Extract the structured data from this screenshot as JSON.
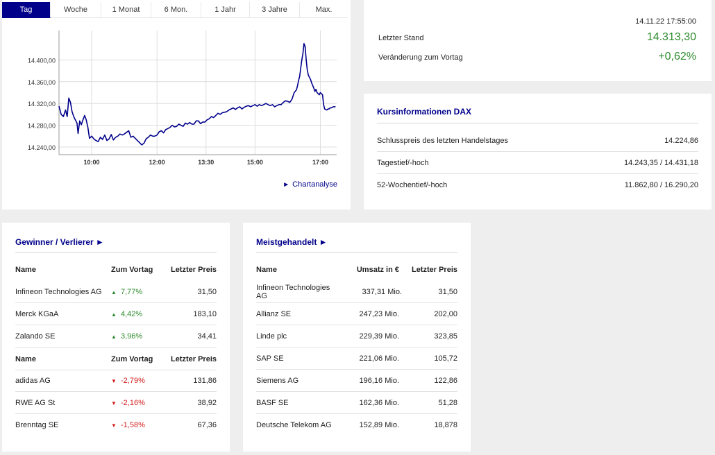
{
  "tabs": [
    {
      "label": "Tag",
      "active": true
    },
    {
      "label": "Woche",
      "active": false
    },
    {
      "label": "1 Monat",
      "active": false
    },
    {
      "label": "6 Mon.",
      "active": false
    },
    {
      "label": "1 Jahr",
      "active": false
    },
    {
      "label": "3 Jahre",
      "active": false
    },
    {
      "label": "Max.",
      "active": false
    }
  ],
  "chart_data": {
    "type": "line",
    "title": "",
    "xlabel": "",
    "ylabel": "",
    "y_ticks": [
      "14.400,00",
      "14.360,00",
      "14.320,00",
      "14.280,00",
      "14.240,00"
    ],
    "y_tick_values": [
      14400,
      14360,
      14320,
      14280,
      14240
    ],
    "x_ticks": [
      "10:00",
      "12:00",
      "13:30",
      "15:00",
      "17:00"
    ],
    "x_tick_minutes": [
      600,
      720,
      810,
      900,
      1020
    ],
    "xlim_minutes": [
      540,
      1050
    ],
    "ylim": [
      14226,
      14454
    ],
    "grid": true,
    "line_color": "#00008b",
    "series": [
      {
        "points": [
          [
            540,
            14315
          ],
          [
            544,
            14300
          ],
          [
            548,
            14296
          ],
          [
            552,
            14308
          ],
          [
            555,
            14296
          ],
          [
            558,
            14330
          ],
          [
            561,
            14322
          ],
          [
            564,
            14305
          ],
          [
            567,
            14296
          ],
          [
            570,
            14290
          ],
          [
            573,
            14284
          ],
          [
            575,
            14265
          ],
          [
            578,
            14288
          ],
          [
            581,
            14281
          ],
          [
            584,
            14290
          ],
          [
            587,
            14298
          ],
          [
            590,
            14290
          ],
          [
            593,
            14276
          ],
          [
            596,
            14256
          ],
          [
            600,
            14260
          ],
          [
            604,
            14255
          ],
          [
            608,
            14252
          ],
          [
            612,
            14250
          ],
          [
            616,
            14258
          ],
          [
            620,
            14254
          ],
          [
            624,
            14262
          ],
          [
            628,
            14252
          ],
          [
            632,
            14255
          ],
          [
            636,
            14263
          ],
          [
            640,
            14253
          ],
          [
            644,
            14258
          ],
          [
            648,
            14260
          ],
          [
            652,
            14264
          ],
          [
            656,
            14262
          ],
          [
            660,
            14264
          ],
          [
            664,
            14267
          ],
          [
            668,
            14270
          ],
          [
            672,
            14258
          ],
          [
            676,
            14260
          ],
          [
            680,
            14256
          ],
          [
            684,
            14252
          ],
          [
            688,
            14248
          ],
          [
            692,
            14244
          ],
          [
            696,
            14247
          ],
          [
            700,
            14255
          ],
          [
            704,
            14258
          ],
          [
            708,
            14262
          ],
          [
            712,
            14260
          ],
          [
            716,
            14260
          ],
          [
            720,
            14262
          ],
          [
            724,
            14268
          ],
          [
            728,
            14270
          ],
          [
            732,
            14266
          ],
          [
            736,
            14272
          ],
          [
            740,
            14274
          ],
          [
            744,
            14276
          ],
          [
            748,
            14280
          ],
          [
            752,
            14277
          ],
          [
            756,
            14278
          ],
          [
            760,
            14282
          ],
          [
            764,
            14280
          ],
          [
            768,
            14278
          ],
          [
            772,
            14284
          ],
          [
            776,
            14282
          ],
          [
            780,
            14285
          ],
          [
            784,
            14282
          ],
          [
            788,
            14282
          ],
          [
            792,
            14288
          ],
          [
            796,
            14288
          ],
          [
            800,
            14283
          ],
          [
            804,
            14286
          ],
          [
            808,
            14286
          ],
          [
            812,
            14290
          ],
          [
            816,
            14292
          ],
          [
            820,
            14296
          ],
          [
            824,
            14294
          ],
          [
            828,
            14298
          ],
          [
            832,
            14302
          ],
          [
            836,
            14300
          ],
          [
            840,
            14303
          ],
          [
            844,
            14304
          ],
          [
            848,
            14305
          ],
          [
            852,
            14308
          ],
          [
            856,
            14310
          ],
          [
            860,
            14312
          ],
          [
            864,
            14309
          ],
          [
            868,
            14312
          ],
          [
            872,
            14314
          ],
          [
            876,
            14310
          ],
          [
            880,
            14313
          ],
          [
            884,
            14315
          ],
          [
            888,
            14316
          ],
          [
            892,
            14314
          ],
          [
            896,
            14316
          ],
          [
            900,
            14318
          ],
          [
            904,
            14315
          ],
          [
            908,
            14318
          ],
          [
            912,
            14316
          ],
          [
            916,
            14318
          ],
          [
            920,
            14320
          ],
          [
            924,
            14318
          ],
          [
            928,
            14316
          ],
          [
            932,
            14318
          ],
          [
            936,
            14314
          ],
          [
            940,
            14316
          ],
          [
            944,
            14318
          ],
          [
            948,
            14318
          ],
          [
            952,
            14322
          ],
          [
            956,
            14325
          ],
          [
            960,
            14324
          ],
          [
            964,
            14322
          ],
          [
            968,
            14328
          ],
          [
            972,
            14340
          ],
          [
            976,
            14345
          ],
          [
            978,
            14352
          ],
          [
            980,
            14362
          ],
          [
            982,
            14370
          ],
          [
            984,
            14385
          ],
          [
            986,
            14400
          ],
          [
            988,
            14412
          ],
          [
            990,
            14430
          ],
          [
            992,
            14425
          ],
          [
            994,
            14400
          ],
          [
            996,
            14382
          ],
          [
            998,
            14372
          ],
          [
            1000,
            14368
          ],
          [
            1002,
            14364
          ],
          [
            1004,
            14358
          ],
          [
            1006,
            14353
          ],
          [
            1008,
            14348
          ],
          [
            1010,
            14342
          ],
          [
            1012,
            14346
          ],
          [
            1014,
            14340
          ],
          [
            1016,
            14338
          ],
          [
            1018,
            14336
          ],
          [
            1020,
            14340
          ],
          [
            1022,
            14338
          ],
          [
            1024,
            14336
          ],
          [
            1026,
            14318
          ],
          [
            1028,
            14310
          ],
          [
            1030,
            14309
          ],
          [
            1032,
            14308
          ],
          [
            1034,
            14310
          ],
          [
            1036,
            14310
          ],
          [
            1038,
            14312
          ],
          [
            1040,
            14312
          ],
          [
            1042,
            14313
          ],
          [
            1044,
            14314
          ],
          [
            1046,
            14314
          ],
          [
            1048,
            14314
          ]
        ]
      }
    ]
  },
  "chart_link": {
    "arrow": "►",
    "label": "Chartanalyse"
  },
  "quote": {
    "timestamp": "14.11.22 17:55:00",
    "last_label": "Letzter Stand",
    "last_value": "14.313,30",
    "change_label": "Veränderung zum Vortag",
    "change_value": "+0,62%",
    "positive_color": "#2e8b2e"
  },
  "info": {
    "title": "Kursinformationen DAX",
    "rows": [
      {
        "label": "Schlusspreis des letzten Handelstages",
        "value": "14.224,86"
      },
      {
        "label": "Tagestief/-hoch",
        "value": "14.243,35 / 14.431,18"
      },
      {
        "label": "52-Wochentief/-hoch",
        "value": "11.862,80 / 16.290,20"
      }
    ]
  },
  "gainers_losers": {
    "title": "Gewinner / Verlierer ►",
    "headers": {
      "name": "Name",
      "change": "Zum Vortag",
      "price": "Letzter Preis"
    },
    "gainers": [
      {
        "name": "Infineon Technologies AG",
        "change": "7,77%",
        "price": "31,50",
        "arrow": "▲"
      },
      {
        "name": "Merck KGaA",
        "change": "4,42%",
        "price": "183,10",
        "arrow": "▲"
      },
      {
        "name": "Zalando SE",
        "change": "3,96%",
        "price": "34,41",
        "arrow": "▲"
      }
    ],
    "losers": [
      {
        "name": "adidas AG",
        "change": "-2,79%",
        "price": "131,86",
        "arrow": "▼"
      },
      {
        "name": "RWE AG St",
        "change": "-2,16%",
        "price": "38,92",
        "arrow": "▼"
      },
      {
        "name": "Brenntag SE",
        "change": "-1,58%",
        "price": "67,36",
        "arrow": "▼"
      }
    ]
  },
  "most_traded": {
    "title": "Meistgehandelt ►",
    "headers": {
      "name": "Name",
      "turnover": "Umsatz in €",
      "price": "Letzter Preis"
    },
    "rows": [
      {
        "name": "Infineon Technologies AG",
        "turnover": "337,31 Mio.",
        "price": "31,50"
      },
      {
        "name": "Allianz SE",
        "turnover": "247,23 Mio.",
        "price": "202,00"
      },
      {
        "name": "Linde plc",
        "turnover": "229,39 Mio.",
        "price": "323,85"
      },
      {
        "name": "SAP SE",
        "turnover": "221,06 Mio.",
        "price": "105,72"
      },
      {
        "name": "Siemens AG",
        "turnover": "196,16 Mio.",
        "price": "122,86"
      },
      {
        "name": "BASF SE",
        "turnover": "162,36 Mio.",
        "price": "51,28"
      },
      {
        "name": "Deutsche Telekom AG",
        "turnover": "152,89 Mio.",
        "price": "18,878"
      }
    ]
  }
}
